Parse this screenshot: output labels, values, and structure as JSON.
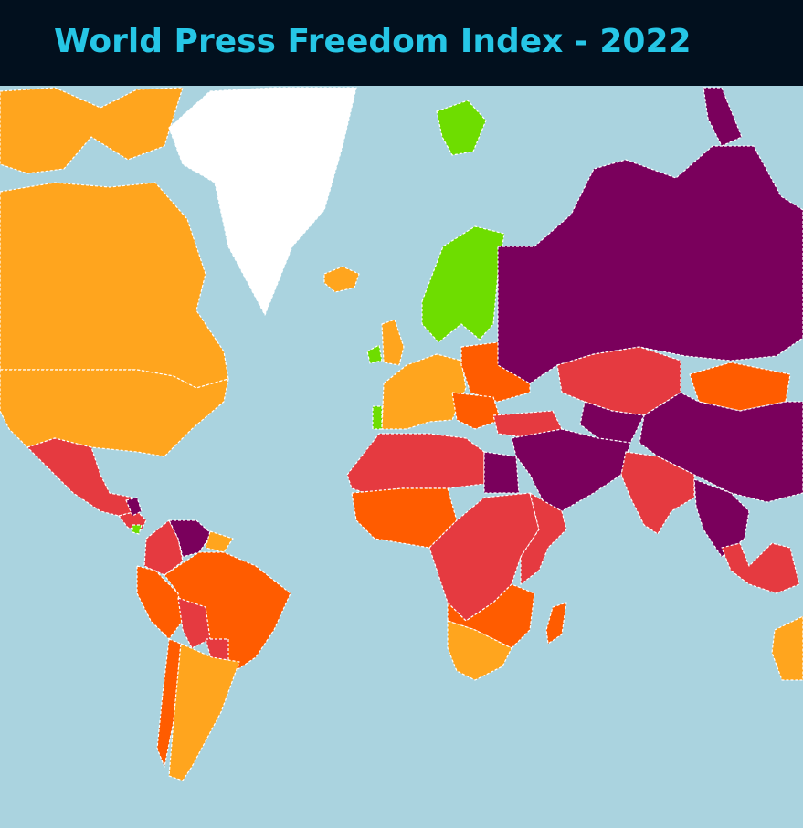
{
  "header": {
    "title": "World Press Freedom Index - 2022",
    "background_color": "#02101e",
    "title_color": "#26c6e6"
  },
  "map": {
    "ocean_color": "#aad3df",
    "categories": {
      "good": "#6edd00",
      "satisfactory": "#ffa51e",
      "problematic": "#ff5c00",
      "difficult": "#e53a40",
      "very_serious": "#7a005c",
      "no_data": "#ffffff"
    },
    "regions": [
      {
        "name": "canada",
        "category": "satisfactory"
      },
      {
        "name": "arctic-islands",
        "category": "satisfactory"
      },
      {
        "name": "usa",
        "category": "satisfactory"
      },
      {
        "name": "greenland",
        "category": "no_data"
      },
      {
        "name": "iceland",
        "category": "satisfactory"
      },
      {
        "name": "svalbard",
        "category": "good"
      },
      {
        "name": "mexico",
        "category": "difficult"
      },
      {
        "name": "central-america",
        "category": "difficult"
      },
      {
        "name": "nicaragua",
        "category": "very_serious"
      },
      {
        "name": "costa-rica",
        "category": "good"
      },
      {
        "name": "colombia",
        "category": "difficult"
      },
      {
        "name": "venezuela",
        "category": "very_serious"
      },
      {
        "name": "guianas",
        "category": "satisfactory"
      },
      {
        "name": "peru",
        "category": "problematic"
      },
      {
        "name": "brazil",
        "category": "problematic"
      },
      {
        "name": "bolivia",
        "category": "difficult"
      },
      {
        "name": "chile",
        "category": "problematic"
      },
      {
        "name": "argentina",
        "category": "satisfactory"
      },
      {
        "name": "paraguay",
        "category": "difficult"
      },
      {
        "name": "nordics",
        "category": "good"
      },
      {
        "name": "ireland",
        "category": "good"
      },
      {
        "name": "uk",
        "category": "satisfactory"
      },
      {
        "name": "western-europe",
        "category": "satisfactory"
      },
      {
        "name": "portugal",
        "category": "good"
      },
      {
        "name": "eastern-europe",
        "category": "problematic"
      },
      {
        "name": "balkans",
        "category": "problematic"
      },
      {
        "name": "turkey",
        "category": "difficult"
      },
      {
        "name": "russia",
        "category": "very_serious"
      },
      {
        "name": "kazakhstan",
        "category": "difficult"
      },
      {
        "name": "central-asia",
        "category": "very_serious"
      },
      {
        "name": "mongolia",
        "category": "problematic"
      },
      {
        "name": "china",
        "category": "very_serious"
      },
      {
        "name": "middle-east",
        "category": "very_serious"
      },
      {
        "name": "india",
        "category": "difficult"
      },
      {
        "name": "southeast-asia",
        "category": "very_serious"
      },
      {
        "name": "indonesia",
        "category": "difficult"
      },
      {
        "name": "north-africa",
        "category": "difficult"
      },
      {
        "name": "egypt",
        "category": "very_serious"
      },
      {
        "name": "west-africa",
        "category": "problematic"
      },
      {
        "name": "central-africa",
        "category": "difficult"
      },
      {
        "name": "east-africa",
        "category": "difficult"
      },
      {
        "name": "southern-africa",
        "category": "problematic"
      },
      {
        "name": "south-africa",
        "category": "satisfactory"
      },
      {
        "name": "madagascar",
        "category": "problematic"
      },
      {
        "name": "australia",
        "category": "satisfactory"
      }
    ]
  }
}
